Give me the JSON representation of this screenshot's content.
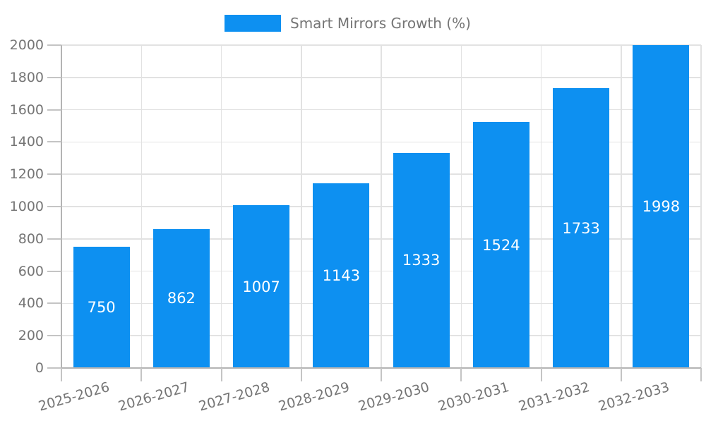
{
  "chart_data": {
    "type": "bar",
    "title": "",
    "categories": [
      "2025-2026",
      "2026-2027",
      "2027-2028",
      "2028-2029",
      "2029-2030",
      "2030-2031",
      "2031-2032",
      "2032-2033"
    ],
    "series": [
      {
        "name": "Smart Mirrors Growth (%)",
        "values": [
          750,
          862,
          1007,
          1143,
          1333,
          1524,
          1733,
          1998
        ]
      }
    ],
    "xlabel": "",
    "ylabel": "",
    "ylim": [
      0,
      2000
    ],
    "ytick_labels": [
      "0",
      "200",
      "400",
      "600",
      "800",
      "1000",
      "1200",
      "1400",
      "1600",
      "1800",
      "2000"
    ],
    "ytick_step": 200,
    "grid": true,
    "bar_value_labels_inside": true,
    "legend_position": "top-center",
    "colors": {
      "bar": "#0d90f1",
      "bar_label_text": "#ffffff",
      "axis_label_text": "#757575",
      "legend_text": "#757575",
      "gridline": "#e2e2e2",
      "axis_line": "#b4b4b4",
      "tick": "#c4c4c4",
      "background": "#ffffff"
    }
  }
}
